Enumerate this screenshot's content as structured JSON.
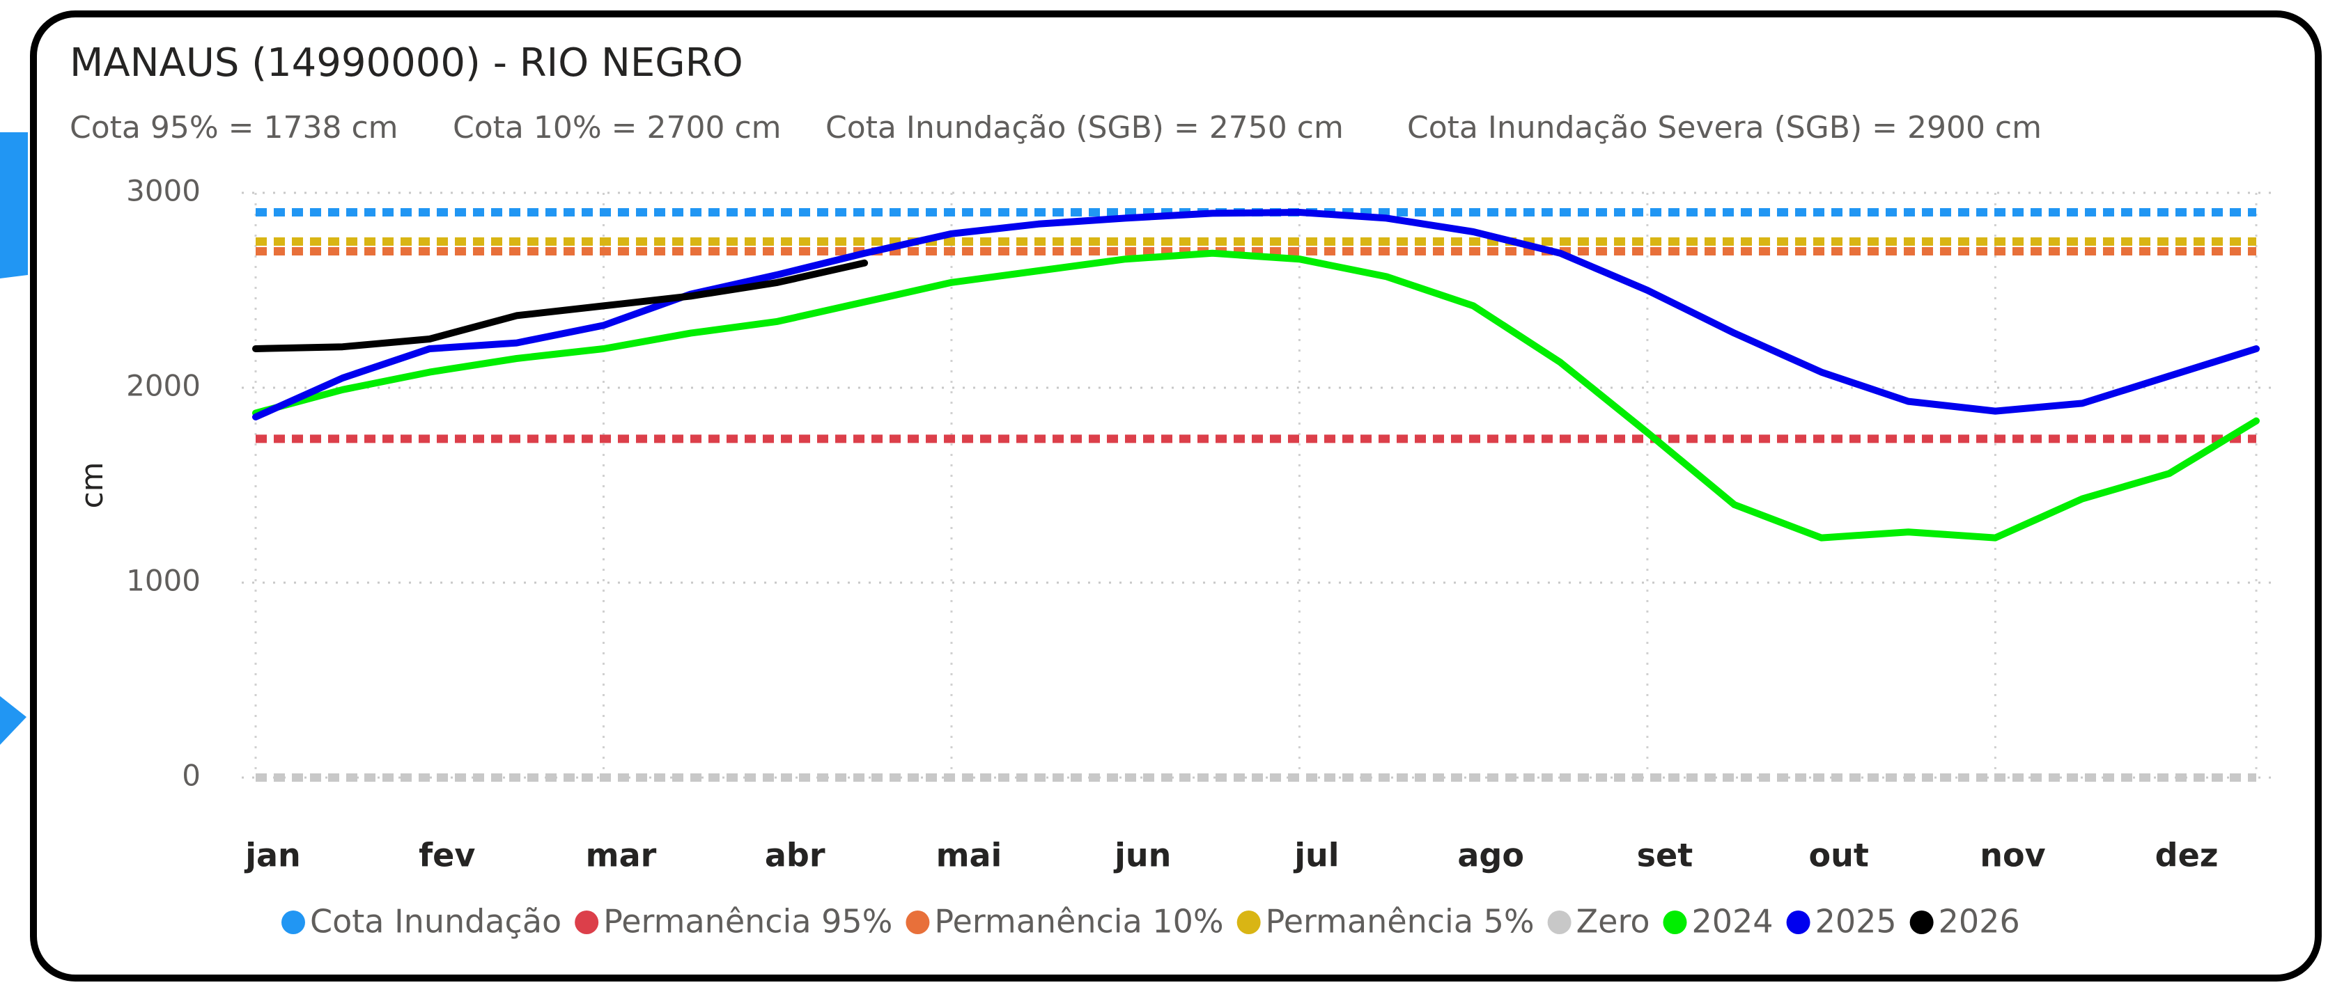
{
  "chart_data": {
    "type": "line",
    "title": "MANAUS (14990000) - RIO NEGRO",
    "subtitle": [
      "Cota 95% = 1738 cm",
      "Cota 10% = 2700 cm",
      "Cota Inundação (SGB) = 2750 cm",
      "Cota Inundação Severa (SGB) = 2900 cm"
    ],
    "y_label": "cm",
    "categories": [
      "jan",
      null,
      "fev",
      null,
      "mar",
      null,
      "abr",
      null,
      "mai",
      null,
      "jun",
      null,
      "jul",
      null,
      "ago",
      null,
      "set",
      null,
      "out",
      null,
      "nov",
      null,
      "dez",
      null
    ],
    "ylim": [
      0,
      3000
    ],
    "yticks": [
      0,
      1000,
      2000,
      3000
    ],
    "grid": true,
    "series": [
      {
        "name": "Cota Inundação",
        "color": "#2196f3",
        "dashed": true,
        "value": 2900
      },
      {
        "name": "Permanência 95%",
        "color": "#dc3f4a",
        "dashed": true,
        "value": 1738
      },
      {
        "name": "Permanência 10%",
        "color": "#e8703a",
        "dashed": true,
        "value": 2700
      },
      {
        "name": "Permanência 5%",
        "color": "#d9b514",
        "dashed": true,
        "value": 2750
      },
      {
        "name": "Zero",
        "color": "#c8c8c8",
        "dashed": true,
        "value": 0
      },
      {
        "name": "2024",
        "color": "#00ee00",
        "values": [
          1870,
          1990,
          2080,
          2150,
          2200,
          2280,
          2340,
          2440,
          2540,
          2600,
          2660,
          2690,
          2660,
          2570,
          2420,
          2130,
          1770,
          1400,
          1230,
          1260,
          1230,
          1430,
          1560,
          1830
        ]
      },
      {
        "name": "2025",
        "color": "#0000ee",
        "values": [
          1850,
          2050,
          2200,
          2230,
          2320,
          2480,
          2580,
          2690,
          2790,
          2840,
          2870,
          2895,
          2900,
          2870,
          2800,
          2690,
          2500,
          2280,
          2080,
          1930,
          1880,
          1920,
          2060,
          2200
        ]
      },
      {
        "name": "2026",
        "color": "#000000",
        "values": [
          2200,
          2210,
          2250,
          2370,
          2420,
          2470,
          2540,
          2640,
          null,
          null,
          null,
          null,
          null,
          null,
          null,
          null,
          null,
          null,
          null,
          null,
          null,
          null,
          null,
          null
        ]
      }
    ]
  }
}
